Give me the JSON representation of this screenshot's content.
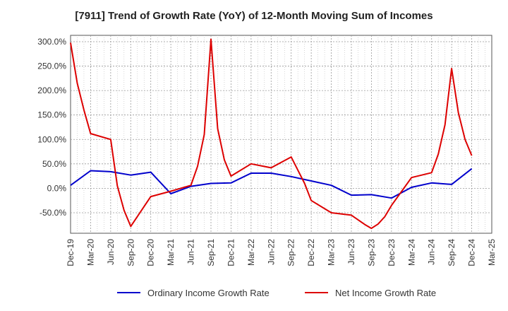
{
  "chart_data": {
    "type": "line",
    "title": "[7911]  Trend of Growth Rate (YoY) of 12-Month Moving Sum of Incomes",
    "xlabel": "",
    "ylabel": "",
    "x_tick_labels": [
      "Dec-19",
      "Mar-20",
      "Jun-20",
      "Sep-20",
      "Dec-20",
      "Mar-21",
      "Jun-21",
      "Sep-21",
      "Dec-21",
      "Mar-22",
      "Jun-22",
      "Sep-22",
      "Dec-22",
      "Mar-23",
      "Jun-23",
      "Sep-23",
      "Dec-23",
      "Mar-24",
      "Jun-24",
      "Sep-24",
      "Dec-24",
      "Mar-25"
    ],
    "y_ticks": [
      -50,
      0,
      50,
      100,
      150,
      200,
      250,
      300
    ],
    "y_tick_labels": [
      "-50.0%",
      "0.0%",
      "50.0%",
      "100.0%",
      "150.0%",
      "200.0%",
      "250.0%",
      "300.0%"
    ],
    "ylim": [
      -92,
      313
    ],
    "x_range_months": [
      0,
      63
    ],
    "grid": true,
    "legend_position": "bottom",
    "series": [
      {
        "name": "Ordinary Income Growth Rate",
        "color": "#0000cc",
        "x": [
          "Dec-19",
          "Mar-20",
          "Jun-20",
          "Sep-20",
          "Dec-20",
          "Mar-21",
          "Jun-21",
          "Sep-21",
          "Dec-21",
          "Mar-22",
          "Jun-22",
          "Sep-22",
          "Dec-22",
          "Mar-23",
          "Jun-23",
          "Sep-23",
          "Dec-23",
          "Mar-24",
          "Jun-24",
          "Sep-24",
          "Dec-24"
        ],
        "month_index": [
          0,
          3,
          6,
          9,
          12,
          15,
          18,
          21,
          24,
          27,
          30,
          33,
          36,
          39,
          42,
          45,
          48,
          51,
          54,
          57,
          60
        ],
        "values": [
          6,
          36,
          34,
          27,
          33,
          -11,
          4,
          10,
          11,
          31,
          31,
          24,
          15,
          6,
          -14,
          -13,
          -20,
          2,
          11,
          8,
          40
        ]
      },
      {
        "name": "Net Income Growth Rate",
        "color": "#dd0000",
        "month_index": [
          0,
          1,
          2,
          3,
          6,
          7,
          8,
          9,
          12,
          15,
          18,
          19,
          20,
          21,
          22,
          23,
          24,
          27,
          30,
          33,
          35,
          36,
          39,
          42,
          44,
          45,
          46,
          47,
          48,
          51,
          54,
          55,
          56,
          57,
          58,
          59,
          60
        ],
        "values": [
          298,
          215,
          160,
          112,
          100,
          5,
          -45,
          -78,
          -17,
          -6,
          6,
          45,
          110,
          305,
          122,
          58,
          25,
          50,
          42,
          64,
          10,
          -25,
          -50,
          -55,
          -74,
          -82,
          -73,
          -58,
          -35,
          22,
          32,
          70,
          130,
          245,
          155,
          100,
          67
        ]
      }
    ]
  }
}
